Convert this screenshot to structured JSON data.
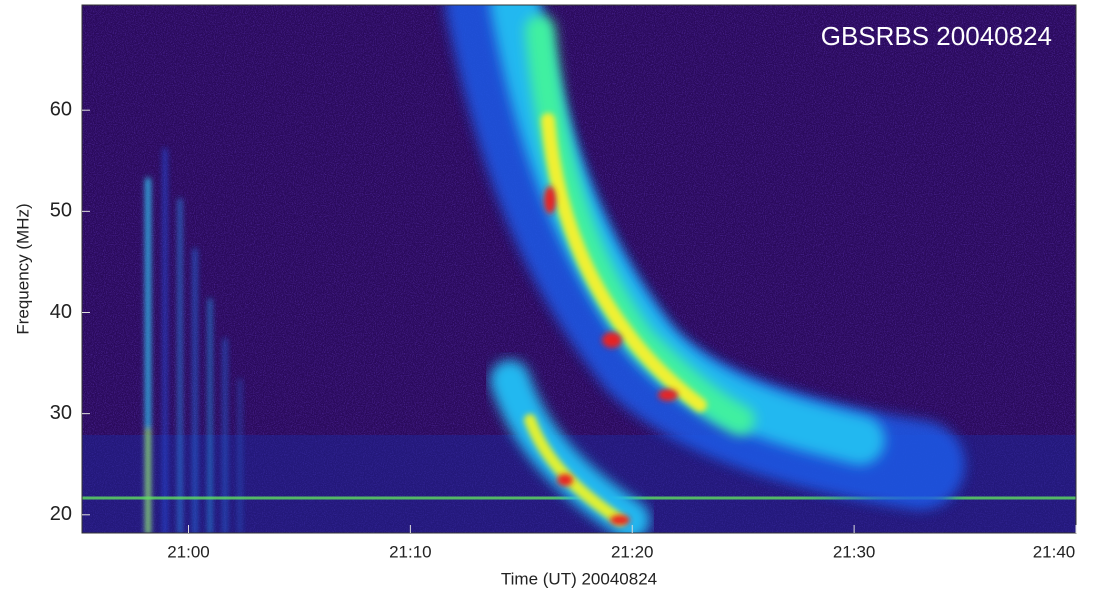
{
  "chart_data": {
    "type": "spectrogram",
    "annotation": "GBSRBS 20040824",
    "xlabel": "Time (UT) 20040824",
    "ylabel": "Frequency (MHz)",
    "xlim": [
      1255.2,
      1300
    ],
    "xticks": [
      {
        "value": 1260,
        "label": "21:00"
      },
      {
        "value": 1270,
        "label": "21:10"
      },
      {
        "value": 1280,
        "label": "21:20"
      },
      {
        "value": 1290,
        "label": "21:30"
      },
      {
        "value": 1300,
        "label": "21:40"
      }
    ],
    "ylim": [
      18.2,
      70.4
    ],
    "yticks": [
      20,
      30,
      40,
      50,
      60
    ]
  }
}
